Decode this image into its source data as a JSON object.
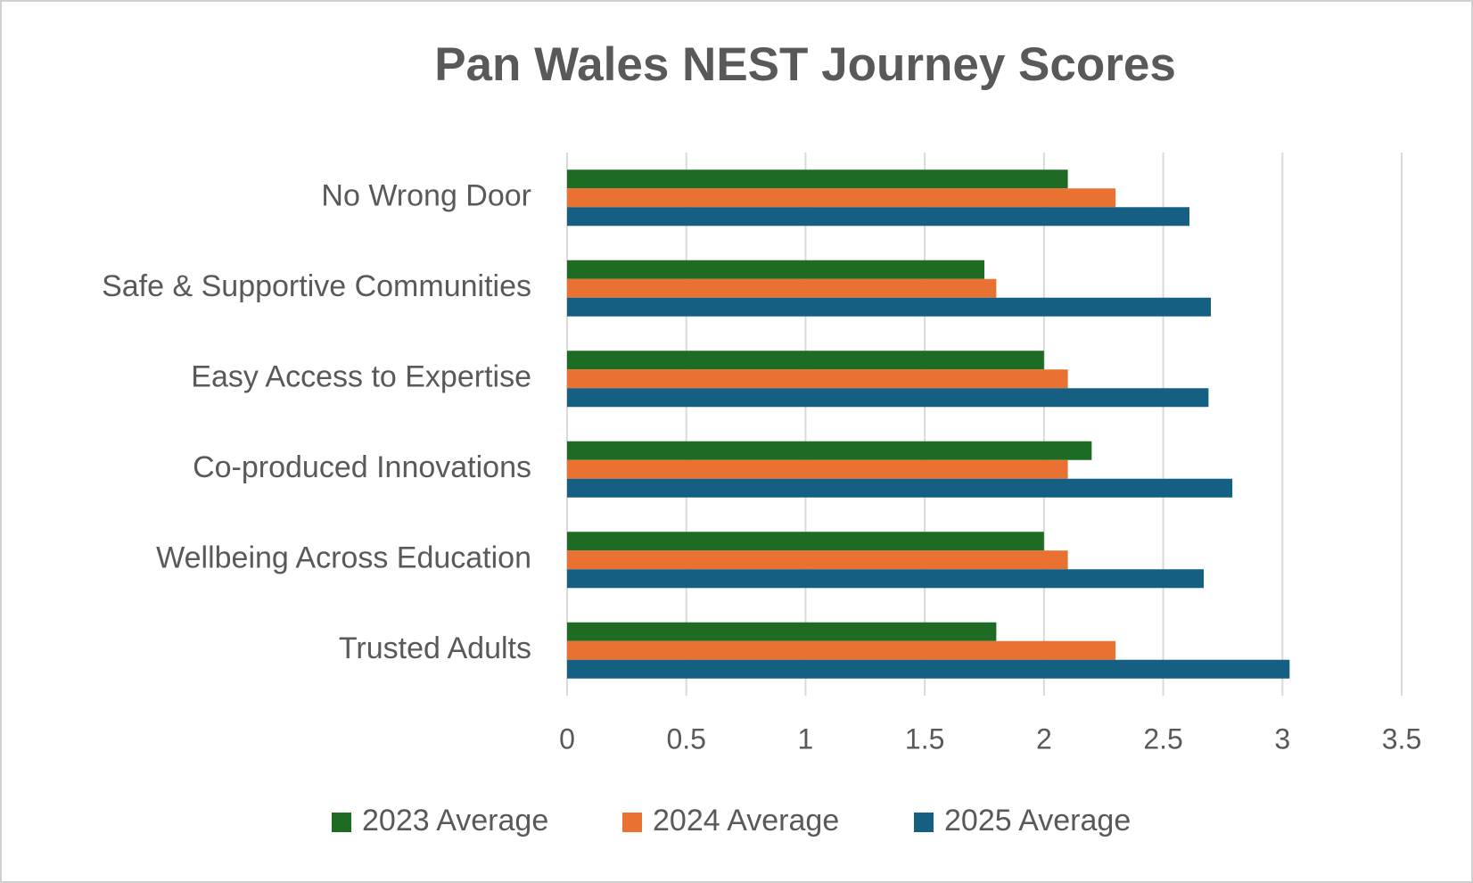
{
  "chart_data": {
    "type": "bar",
    "orientation": "horizontal",
    "title": "Pan Wales NEST Journey Scores",
    "categories": [
      "No Wrong Door",
      "Safe & Supportive Communities",
      "Easy Access to Expertise",
      "Co-produced Innovations",
      "Wellbeing Across Education",
      "Trusted Adults"
    ],
    "series": [
      {
        "name": "2023 Average",
        "color": "#1e6b23",
        "values": [
          2.1,
          1.75,
          2.0,
          2.2,
          2.0,
          1.8
        ]
      },
      {
        "name": "2024 Average",
        "color": "#e97132",
        "values": [
          2.3,
          1.8,
          2.1,
          2.1,
          2.1,
          2.3
        ]
      },
      {
        "name": "2025 Average",
        "color": "#156082",
        "values": [
          2.61,
          2.7,
          2.69,
          2.79,
          2.67,
          3.03
        ]
      }
    ],
    "xlim": [
      0,
      3.5
    ],
    "xticks": [
      0,
      0.5,
      1,
      1.5,
      2,
      2.5,
      3,
      3.5
    ],
    "grid": true,
    "legend": "bottom"
  }
}
